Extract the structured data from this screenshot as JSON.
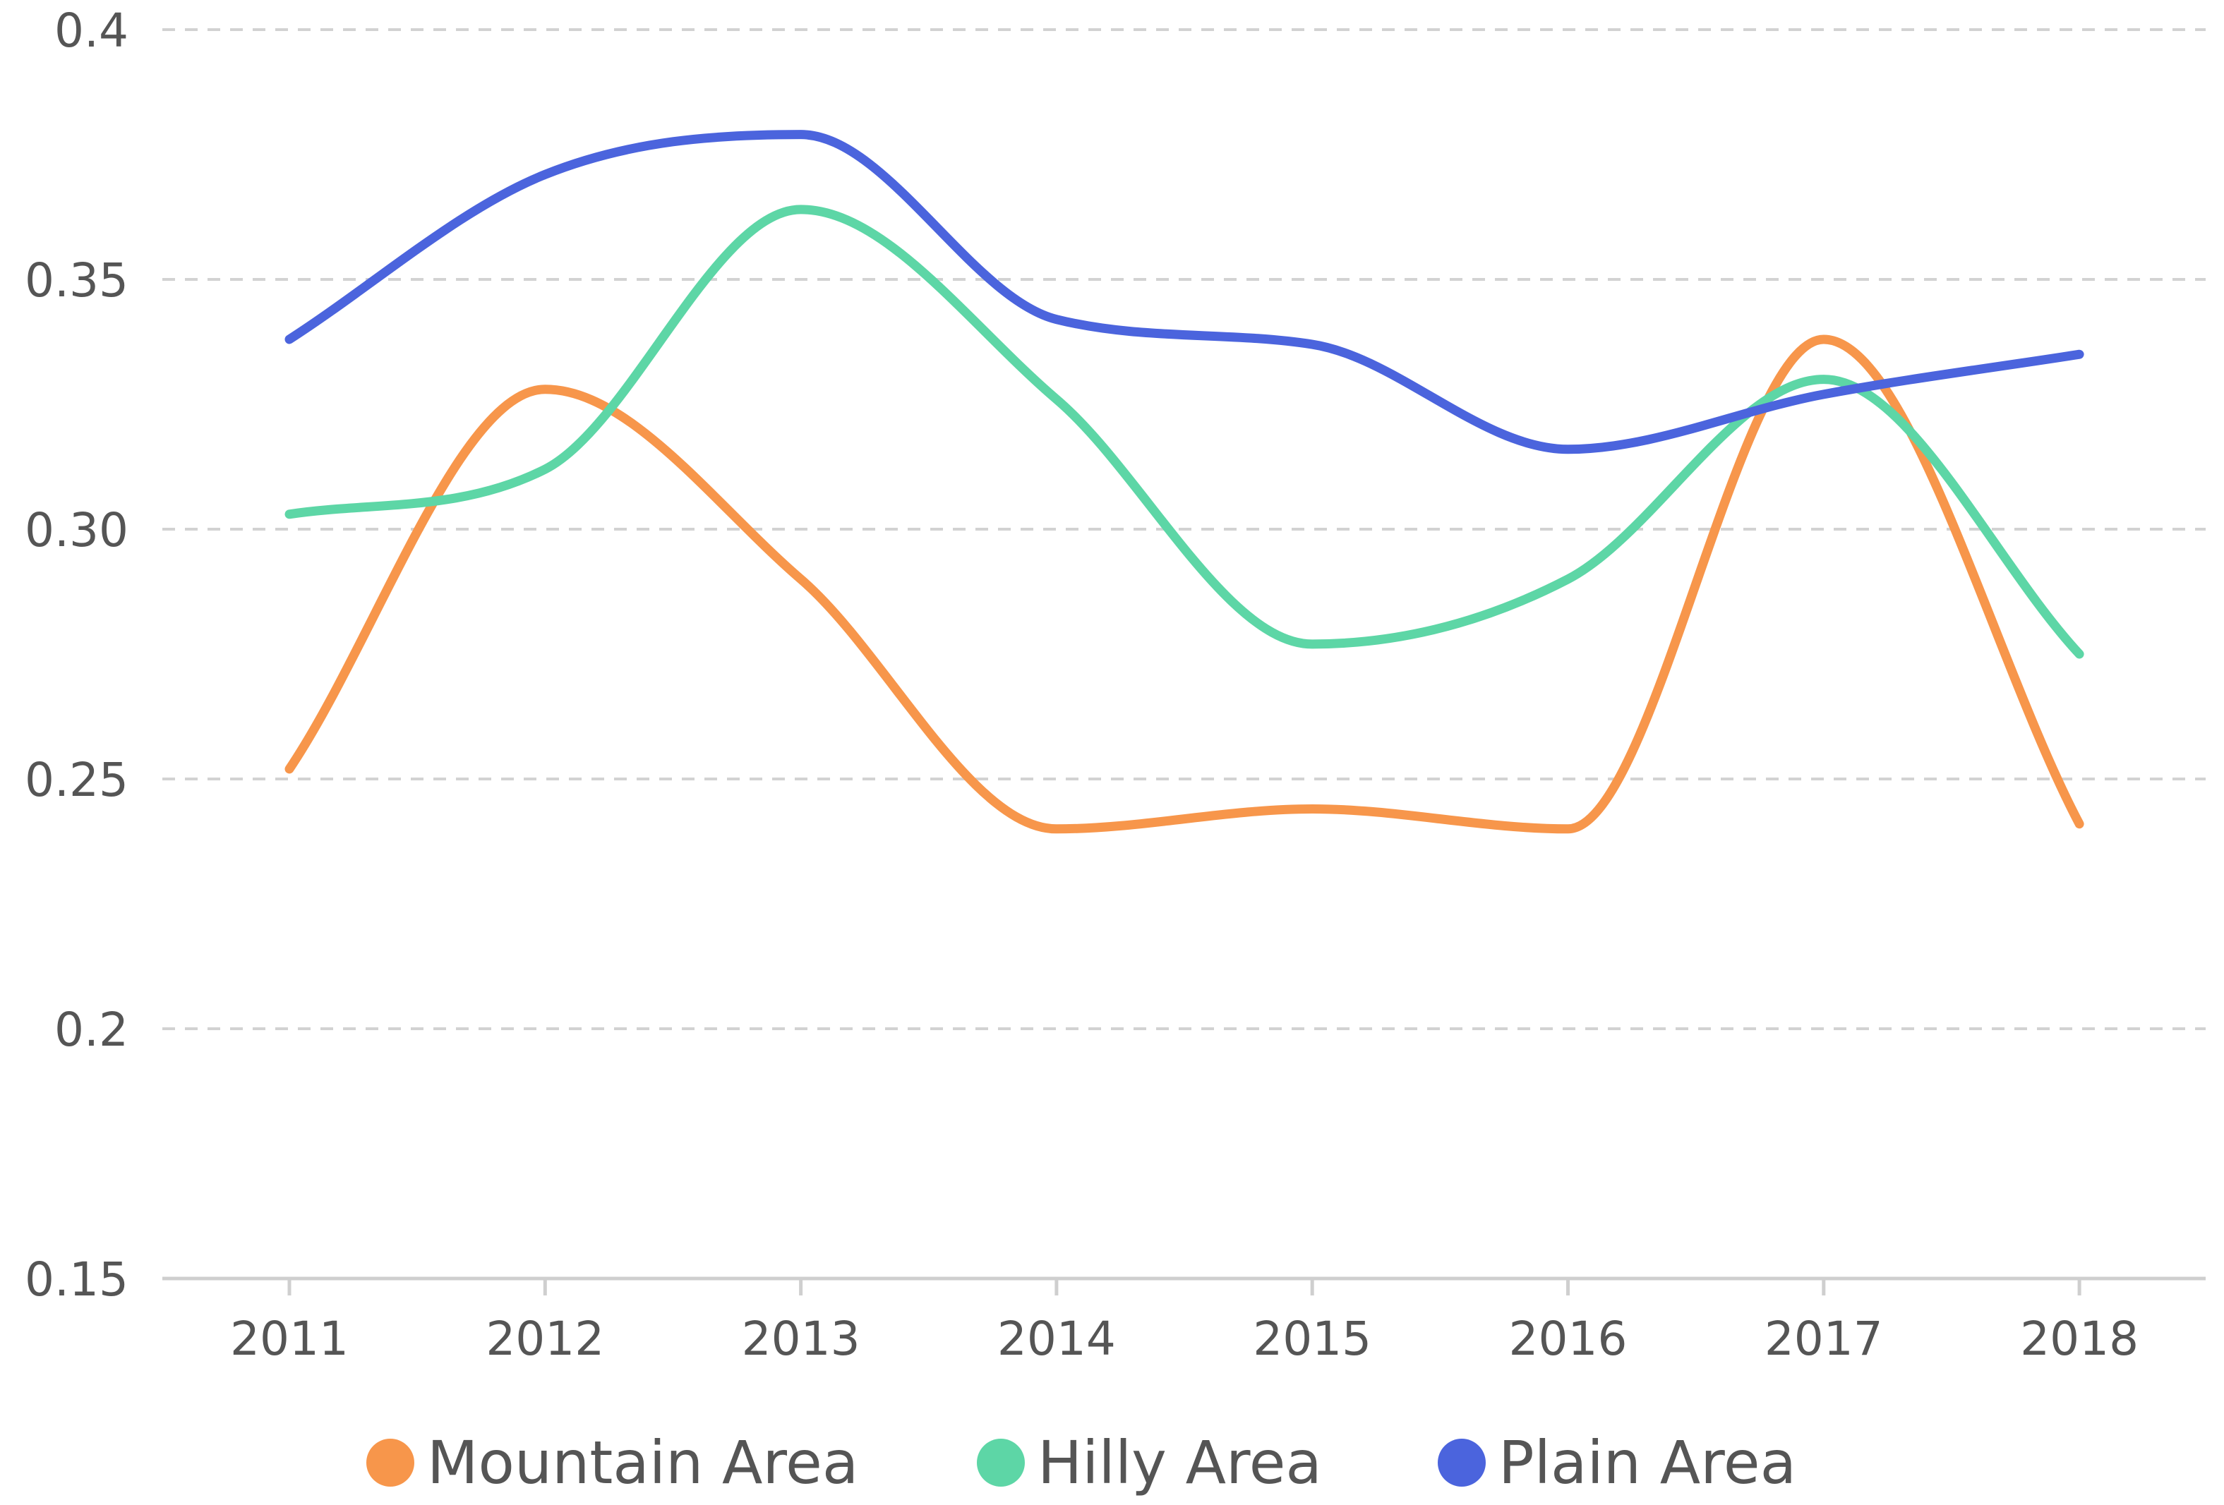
{
  "chart_data": {
    "type": "line",
    "title": "",
    "xlabel": "",
    "ylabel": "",
    "x": [
      "2011",
      "2012",
      "2013",
      "2014",
      "2015",
      "2016",
      "2017",
      "2018"
    ],
    "ylim": [
      0.15,
      0.4
    ],
    "yticks": [
      0.15,
      0.2,
      0.25,
      0.3,
      0.35,
      0.4
    ],
    "ytick_labels": [
      "0.15",
      "0.2",
      "0.25",
      "0.30",
      "0.35",
      "0.4"
    ],
    "grid": true,
    "grid_style": "dashed",
    "legend_position": "bottom",
    "smooth": true,
    "series": [
      {
        "name": "Mountain Area",
        "color": "#F7964B",
        "values": [
          0.252,
          0.328,
          0.29,
          0.24,
          0.244,
          0.24,
          0.338,
          0.241
        ]
      },
      {
        "name": "Hilly Area",
        "color": "#5DD6A6",
        "values": [
          0.303,
          0.312,
          0.364,
          0.326,
          0.277,
          0.29,
          0.33,
          0.275
        ]
      },
      {
        "name": "Plain Area",
        "color": "#4B64DD",
        "values": [
          0.338,
          0.371,
          0.379,
          0.342,
          0.337,
          0.316,
          0.327,
          0.335
        ]
      }
    ]
  }
}
